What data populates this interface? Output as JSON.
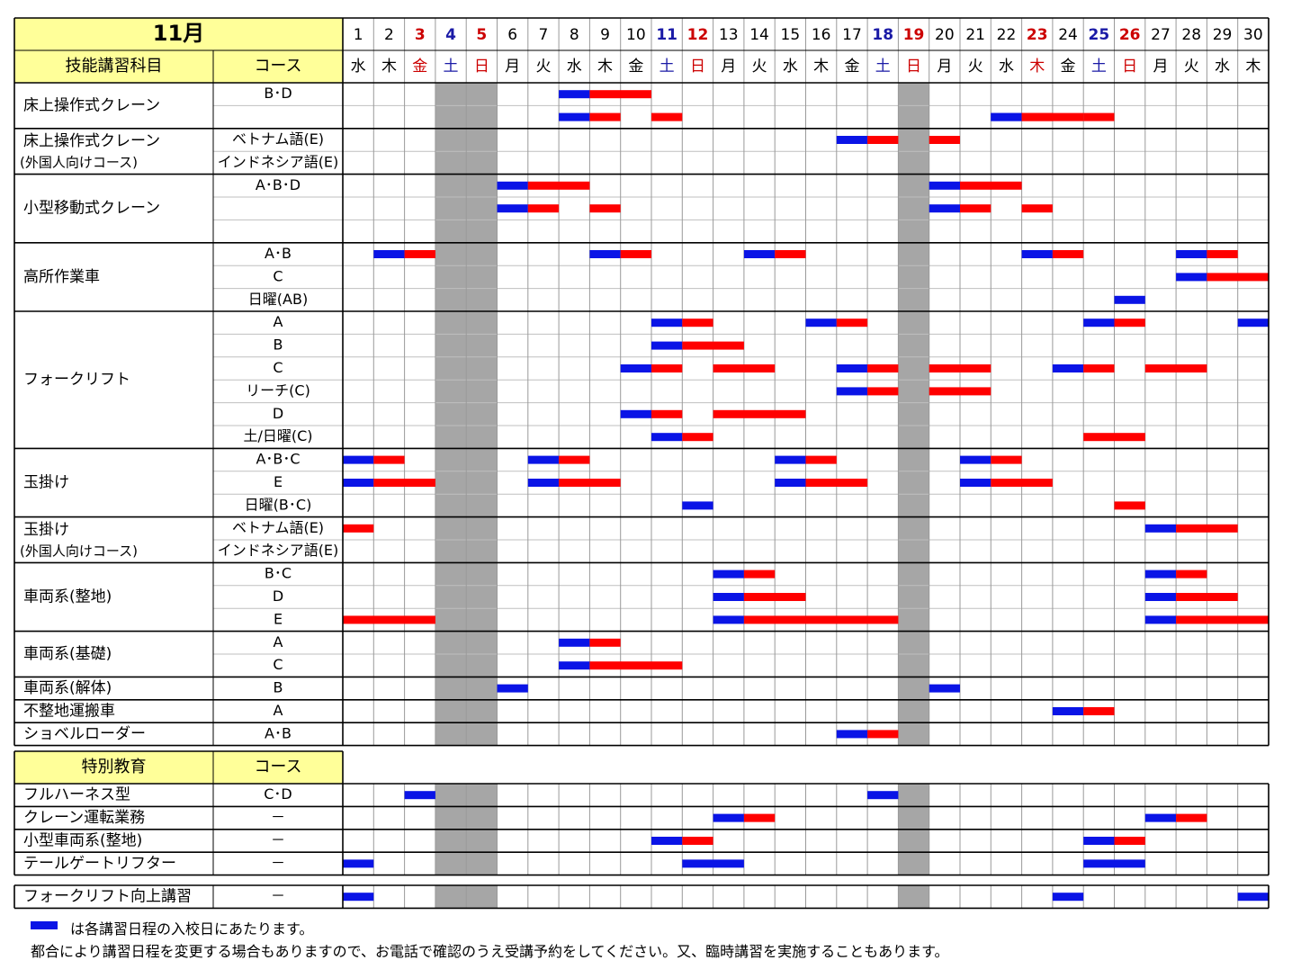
{
  "title": "11月",
  "headers": {
    "subject": "技能講習科目",
    "course": "コース",
    "special": "特別教育",
    "special_course": "コース"
  },
  "days": [
    {
      "d": "1",
      "w": "水",
      "t": ""
    },
    {
      "d": "2",
      "w": "木",
      "t": ""
    },
    {
      "d": "3",
      "w": "金",
      "t": "holiday"
    },
    {
      "d": "4",
      "w": "土",
      "t": "sat"
    },
    {
      "d": "5",
      "w": "日",
      "t": "sun"
    },
    {
      "d": "6",
      "w": "月",
      "t": ""
    },
    {
      "d": "7",
      "w": "火",
      "t": ""
    },
    {
      "d": "8",
      "w": "水",
      "t": ""
    },
    {
      "d": "9",
      "w": "木",
      "t": ""
    },
    {
      "d": "10",
      "w": "金",
      "t": ""
    },
    {
      "d": "11",
      "w": "土",
      "t": "sat"
    },
    {
      "d": "12",
      "w": "日",
      "t": "sun"
    },
    {
      "d": "13",
      "w": "月",
      "t": ""
    },
    {
      "d": "14",
      "w": "火",
      "t": ""
    },
    {
      "d": "15",
      "w": "水",
      "t": ""
    },
    {
      "d": "16",
      "w": "木",
      "t": ""
    },
    {
      "d": "17",
      "w": "金",
      "t": ""
    },
    {
      "d": "18",
      "w": "土",
      "t": "sat"
    },
    {
      "d": "19",
      "w": "日",
      "t": "sun"
    },
    {
      "d": "20",
      "w": "月",
      "t": ""
    },
    {
      "d": "21",
      "w": "火",
      "t": ""
    },
    {
      "d": "22",
      "w": "水",
      "t": ""
    },
    {
      "d": "23",
      "w": "木",
      "t": "holiday"
    },
    {
      "d": "24",
      "w": "金",
      "t": ""
    },
    {
      "d": "25",
      "w": "土",
      "t": "sat"
    },
    {
      "d": "26",
      "w": "日",
      "t": "sun"
    },
    {
      "d": "27",
      "w": "月",
      "t": ""
    },
    {
      "d": "28",
      "w": "火",
      "t": ""
    },
    {
      "d": "29",
      "w": "水",
      "t": ""
    },
    {
      "d": "30",
      "w": "木",
      "t": ""
    }
  ],
  "closed_days": [
    4,
    5,
    19
  ],
  "colors": {
    "entry": "#0a14e6",
    "session": "#ff0000",
    "header_bg": "#ffff99",
    "closed": "#a6a6a6",
    "sat": "#1a1aa6",
    "sun": "#cc0000"
  },
  "groups": [
    {
      "name": [
        "床上操作式クレーン"
      ],
      "rows": [
        {
          "course": "B･D",
          "bars": [
            [
              8,
              1,
              2
            ]
          ]
        },
        {
          "course": "",
          "bars": [
            [
              8,
              1,
              1
            ],
            [
              11,
              0,
              1
            ],
            [
              22,
              1,
              2
            ],
            [
              22,
              1,
              1
            ],
            [
              25,
              0,
              1
            ]
          ]
        }
      ]
    },
    {
      "name": [
        "床上操作式クレーン",
        "(外国人向けコース)"
      ],
      "rows": [
        {
          "course": "ベトナム語(E)",
          "bars": [
            [
              17,
              1,
              1
            ],
            [
              20,
              0,
              1
            ]
          ]
        },
        {
          "course": "インドネシア語(E)",
          "bars": []
        }
      ]
    },
    {
      "name": [
        "小型移動式クレーン"
      ],
      "rows": [
        {
          "course": "A･B･D",
          "bars": []
        },
        {
          "course": "",
          "bars": []
        },
        {
          "course": "",
          "bars": []
        }
      ]
    },
    {
      "name": [
        "高所作業車"
      ],
      "rows": [
        {
          "course": "A･B",
          "bars": [
            [
              2,
              1,
              1
            ],
            [
              9,
              1,
              1
            ],
            [
              14,
              1,
              1
            ],
            [
              23,
              1,
              1
            ],
            [
              28,
              1,
              1
            ]
          ]
        },
        {
          "course": "C",
          "bars": [
            [
              28,
              1,
              2
            ]
          ]
        },
        {
          "course": "日曜(AB)",
          "bars": [
            [
              26,
              1,
              0
            ]
          ]
        }
      ]
    },
    {
      "name": [
        "フォークリフト"
      ],
      "rows": [
        {
          "course": "A",
          "bars": [
            [
              11,
              1,
              1
            ],
            [
              16,
              1,
              1
            ],
            [
              25,
              1,
              1
            ],
            [
              30,
              1,
              0
            ]
          ]
        },
        {
          "course": "B",
          "bars": [
            [
              11,
              1,
              2
            ]
          ]
        },
        {
          "course": "C",
          "bars": [
            [
              10,
              1,
              1
            ],
            [
              13,
              0,
              2
            ],
            [
              17,
              1,
              1
            ],
            [
              20,
              0,
              2
            ],
            [
              24,
              1,
              1
            ],
            [
              27,
              0,
              2
            ]
          ]
        },
        {
          "course": "リーチ(C)",
          "bars": [
            [
              17,
              1,
              1
            ],
            [
              20,
              0,
              2
            ]
          ]
        },
        {
          "course": "D",
          "bars": [
            [
              10,
              1,
              1
            ],
            [
              13,
              0,
              3
            ]
          ]
        },
        {
          "course": "土/日曜(C)",
          "bars": [
            [
              11,
              1,
              1
            ],
            [
              25,
              0,
              2
            ]
          ]
        }
      ]
    },
    {
      "name": [
        "玉掛け"
      ],
      "rows": [
        {
          "course": "A･B･C",
          "bars": [
            [
              1,
              1,
              1
            ],
            [
              7,
              1,
              1
            ],
            [
              15,
              1,
              1
            ],
            [
              21,
              1,
              1
            ]
          ]
        },
        {
          "course": "E",
          "bars": [
            [
              1,
              1,
              2
            ],
            [
              7,
              1,
              2
            ],
            [
              15,
              1,
              2
            ],
            [
              21,
              1,
              2
            ]
          ]
        },
        {
          "course": "日曜(B･C)",
          "bars": [
            [
              12,
              1,
              0
            ],
            [
              26,
              0,
              1
            ]
          ]
        }
      ]
    },
    {
      "name": [
        "玉掛け",
        "(外国人向けコース)"
      ],
      "rows": [
        {
          "course": "ベトナム語(E)",
          "bars": [
            [
              1,
              0,
              1
            ],
            [
              27,
              1,
              2
            ]
          ]
        },
        {
          "course": "インドネシア語(E)",
          "bars": []
        }
      ]
    },
    {
      "name": [
        "車両系(整地)"
      ],
      "rows": [
        {
          "course": "B･C",
          "bars": [
            [
              13,
              1,
              1
            ],
            [
              27,
              1,
              1
            ]
          ]
        },
        {
          "course": "D",
          "bars": [
            [
              13,
              1,
              2
            ],
            [
              27,
              1,
              2
            ]
          ]
        },
        {
          "course": "E",
          "bars": [
            [
              1,
              0,
              3
            ],
            [
              13,
              1,
              5
            ],
            [
              27,
              1,
              3
            ]
          ]
        }
      ]
    },
    {
      "name": [
        "車両系(基礎)"
      ],
      "rows": [
        {
          "course": "A",
          "bars": [
            [
              8,
              1,
              1
            ]
          ]
        },
        {
          "course": "C",
          "bars": [
            [
              8,
              1,
              3
            ]
          ]
        }
      ]
    },
    {
      "name": [
        "車両系(解体)"
      ],
      "rows": [
        {
          "course": "B",
          "bars": [
            [
              6,
              1,
              0
            ],
            [
              20,
              1,
              0
            ]
          ]
        }
      ]
    },
    {
      "name": [
        "不整地運搬車"
      ],
      "rows": [
        {
          "course": "A",
          "bars": [
            [
              24,
              1,
              1
            ]
          ]
        }
      ]
    },
    {
      "name": [
        "ショベルローダー"
      ],
      "rows": [
        {
          "course": "A･B",
          "bars": [
            [
              17,
              1,
              1
            ]
          ]
        }
      ]
    }
  ],
  "special_groups": [
    {
      "name": [
        "フルハーネス型"
      ],
      "rows": [
        {
          "course": "C･D",
          "bars": [
            [
              3,
              1,
              0
            ],
            [
              18,
              1,
              0
            ]
          ]
        }
      ]
    },
    {
      "name": [
        "クレーン運転業務"
      ],
      "rows": [
        {
          "course": "－",
          "bars": [
            [
              13,
              1,
              1
            ],
            [
              27,
              1,
              1
            ]
          ]
        }
      ]
    },
    {
      "name": [
        "小型車両系(整地)"
      ],
      "rows": [
        {
          "course": "－",
          "bars": [
            [
              11,
              1,
              1
            ],
            [
              25,
              1,
              1
            ]
          ]
        }
      ]
    },
    {
      "name": [
        "テールゲートリフター"
      ],
      "rows": [
        {
          "course": "－",
          "bars": [
            [
              1,
              1,
              0
            ],
            [
              12,
              2,
              0
            ],
            [
              25,
              2,
              0
            ]
          ]
        }
      ]
    }
  ],
  "extra_group": {
    "name": [
      "フォークリフト向上講習"
    ],
    "rows": [
      {
        "course": "－",
        "bars": [
          [
            1,
            1,
            0
          ],
          [
            24,
            1,
            0
          ],
          [
            30,
            1,
            0
          ]
        ]
      }
    ]
  },
  "notes": {
    "legend": "は各講習日程の入校日にあたります。",
    "disclaimer": "都合により講習日程を変更する場合もありますので、お電話で確認のうえ受講予約をしてください。又、臨時講習を実施することもあります。"
  }
}
